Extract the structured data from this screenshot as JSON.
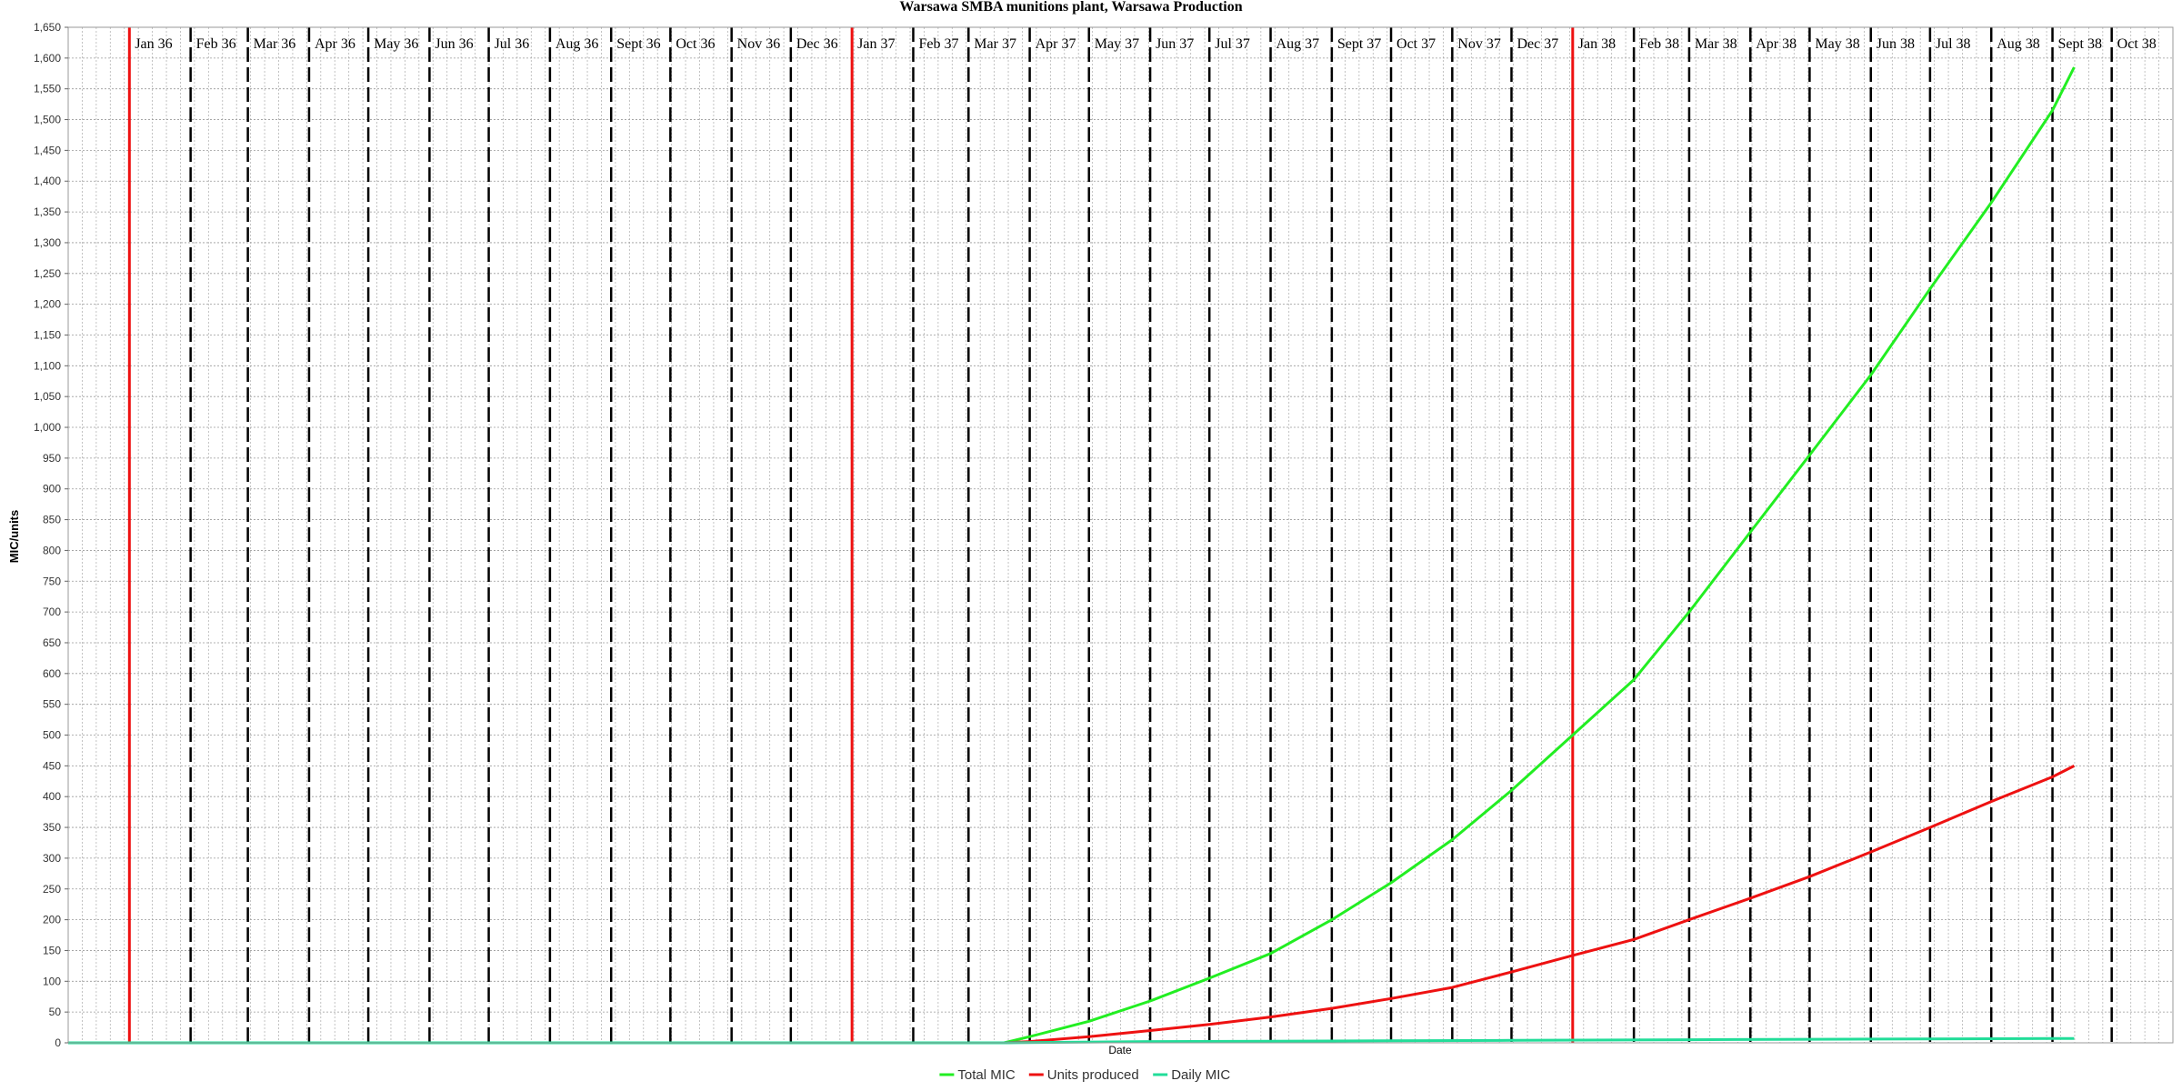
{
  "chart_data": {
    "type": "line",
    "title": "Warsawa SMBA munitions plant, Warsawa Production",
    "xlabel": "Date",
    "ylabel": "MIC/units",
    "ylim": [
      0,
      1650
    ],
    "xlim": [
      "1935-12-01",
      "1938-11-01"
    ],
    "y_ticks": [
      0,
      50,
      100,
      150,
      200,
      250,
      300,
      350,
      400,
      450,
      500,
      550,
      600,
      650,
      700,
      750,
      800,
      850,
      900,
      950,
      1000,
      1050,
      1100,
      1150,
      1200,
      1250,
      1300,
      1350,
      1400,
      1450,
      1500,
      1550,
      1600,
      1650
    ],
    "y_tick_labels": [
      "0",
      "50",
      "100",
      "150",
      "200",
      "250",
      "300",
      "350",
      "400",
      "450",
      "500",
      "550",
      "600",
      "650",
      "700",
      "750",
      "800",
      "850",
      "900",
      "950",
      "1,000",
      "1,050",
      "1,100",
      "1,150",
      "1,200",
      "1,250",
      "1,300",
      "1,350",
      "1,400",
      "1,450",
      "1,500",
      "1,550",
      "1,600",
      "1,650"
    ],
    "grid": true,
    "legend_position": "bottom-center",
    "month_markers": [
      {
        "date": "1936-01-01",
        "label": "Jan 36",
        "style": "year"
      },
      {
        "date": "1936-02-01",
        "label": "Feb 36",
        "style": "month"
      },
      {
        "date": "1936-03-01",
        "label": "Mar 36",
        "style": "month"
      },
      {
        "date": "1936-04-01",
        "label": "Apr 36",
        "style": "month"
      },
      {
        "date": "1936-05-01",
        "label": "May 36",
        "style": "month"
      },
      {
        "date": "1936-06-01",
        "label": "Jun 36",
        "style": "month"
      },
      {
        "date": "1936-07-01",
        "label": "Jul 36",
        "style": "month"
      },
      {
        "date": "1936-08-01",
        "label": "Aug 36",
        "style": "month"
      },
      {
        "date": "1936-09-01",
        "label": "Sept 36",
        "style": "month"
      },
      {
        "date": "1936-10-01",
        "label": "Oct 36",
        "style": "month"
      },
      {
        "date": "1936-11-01",
        "label": "Nov 36",
        "style": "month"
      },
      {
        "date": "1936-12-01",
        "label": "Dec 36",
        "style": "month"
      },
      {
        "date": "1937-01-01",
        "label": "Jan 37",
        "style": "year"
      },
      {
        "date": "1937-02-01",
        "label": "Feb 37",
        "style": "month"
      },
      {
        "date": "1937-03-01",
        "label": "Mar 37",
        "style": "month"
      },
      {
        "date": "1937-04-01",
        "label": "Apr 37",
        "style": "month"
      },
      {
        "date": "1937-05-01",
        "label": "May 37",
        "style": "month"
      },
      {
        "date": "1937-06-01",
        "label": "Jun 37",
        "style": "month"
      },
      {
        "date": "1937-07-01",
        "label": "Jul 37",
        "style": "month"
      },
      {
        "date": "1937-08-01",
        "label": "Aug 37",
        "style": "month"
      },
      {
        "date": "1937-09-01",
        "label": "Sept 37",
        "style": "month"
      },
      {
        "date": "1937-10-01",
        "label": "Oct 37",
        "style": "month"
      },
      {
        "date": "1937-11-01",
        "label": "Nov 37",
        "style": "month"
      },
      {
        "date": "1937-12-01",
        "label": "Dec 37",
        "style": "month"
      },
      {
        "date": "1938-01-01",
        "label": "Jan 38",
        "style": "year"
      },
      {
        "date": "1938-02-01",
        "label": "Feb 38",
        "style": "month"
      },
      {
        "date": "1938-03-01",
        "label": "Mar 38",
        "style": "month"
      },
      {
        "date": "1938-04-01",
        "label": "Apr 38",
        "style": "month"
      },
      {
        "date": "1938-05-01",
        "label": "May 38",
        "style": "month"
      },
      {
        "date": "1938-06-01",
        "label": "Jun 38",
        "style": "month"
      },
      {
        "date": "1938-07-01",
        "label": "Jul 38",
        "style": "month"
      },
      {
        "date": "1938-08-01",
        "label": "Aug 38",
        "style": "month"
      },
      {
        "date": "1938-09-01",
        "label": "Sept 38",
        "style": "month"
      },
      {
        "date": "1938-10-01",
        "label": "Oct 38",
        "style": "month"
      }
    ],
    "series": [
      {
        "name": "Total MIC",
        "color": "#22ee22",
        "x": [
          "1937-03-19",
          "1937-04-01",
          "1937-05-01",
          "1937-06-01",
          "1937-07-01",
          "1937-08-01",
          "1937-09-01",
          "1937-10-01",
          "1937-11-01",
          "1937-12-01",
          "1938-01-01",
          "1938-02-01",
          "1938-03-01",
          "1938-04-01",
          "1938-05-01",
          "1938-06-01",
          "1938-07-01",
          "1938-08-01",
          "1938-09-01",
          "1938-09-12"
        ],
        "y": [
          0,
          10,
          35,
          68,
          105,
          145,
          200,
          260,
          330,
          410,
          500,
          590,
          700,
          830,
          955,
          1085,
          1225,
          1365,
          1515,
          1585
        ]
      },
      {
        "name": "Units produced",
        "color": "#ee1111",
        "x": [
          "1937-03-19",
          "1937-04-01",
          "1937-05-01",
          "1937-06-01",
          "1937-07-01",
          "1937-08-01",
          "1937-09-01",
          "1937-10-01",
          "1937-11-01",
          "1937-12-01",
          "1938-01-01",
          "1938-02-01",
          "1938-03-01",
          "1938-04-01",
          "1938-05-01",
          "1938-06-01",
          "1938-07-01",
          "1938-08-01",
          "1938-09-01",
          "1938-09-12"
        ],
        "y": [
          0,
          2,
          10,
          20,
          30,
          42,
          56,
          72,
          90,
          115,
          142,
          168,
          200,
          235,
          270,
          310,
          350,
          392,
          432,
          450
        ]
      },
      {
        "name": "Daily MIC",
        "color": "#22dd99",
        "x": [
          "1935-12-01",
          "1937-03-19",
          "1937-06-01",
          "1937-09-01",
          "1937-12-01",
          "1938-03-01",
          "1938-06-01",
          "1938-09-01",
          "1938-09-12"
        ],
        "y": [
          0,
          0,
          2,
          3,
          4,
          5,
          6,
          7,
          7
        ]
      }
    ]
  }
}
